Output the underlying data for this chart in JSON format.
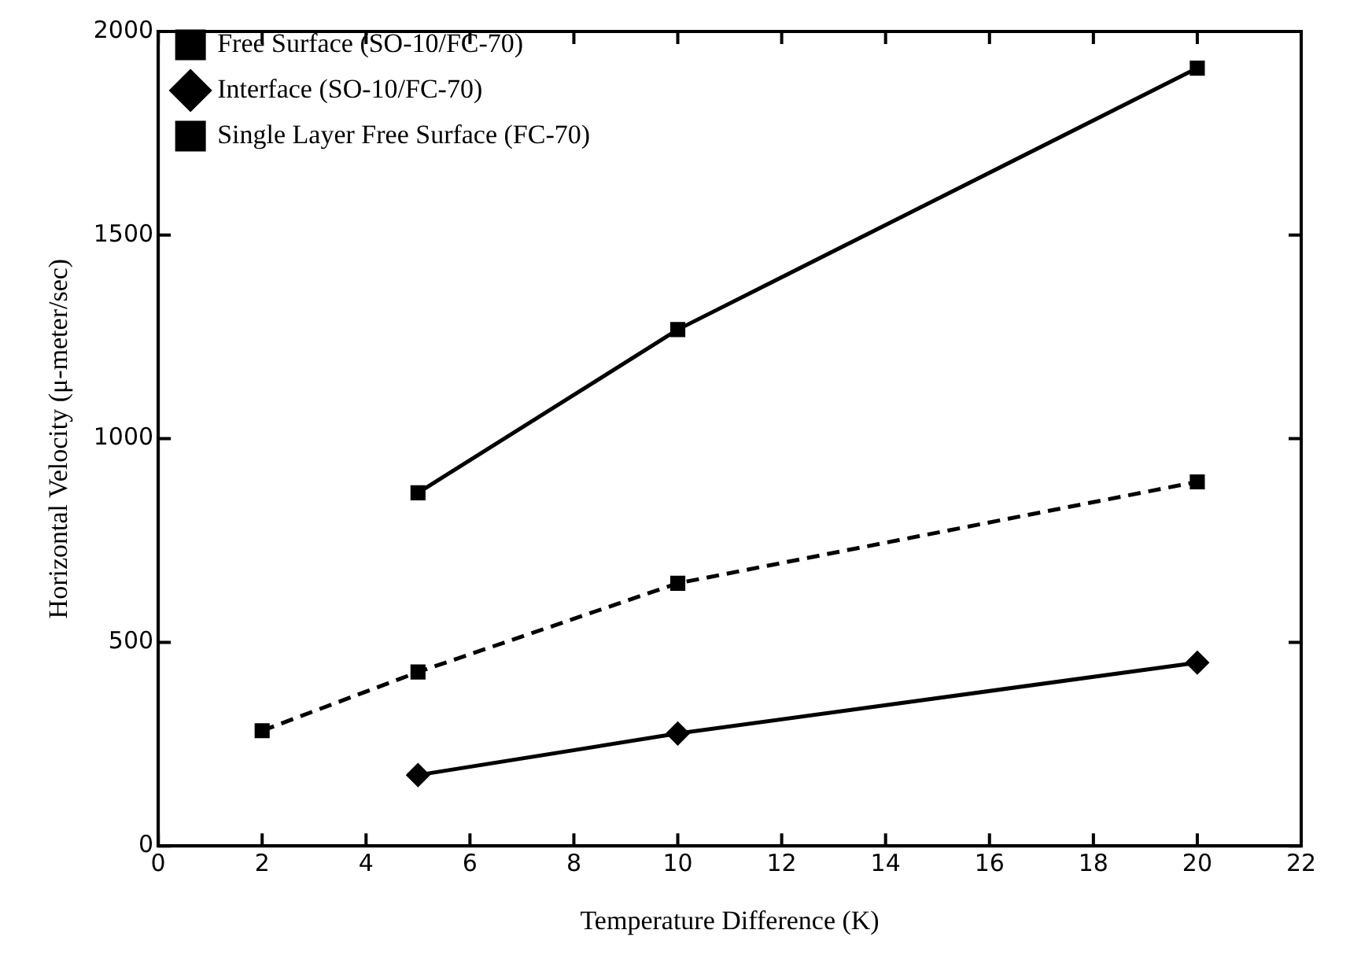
{
  "chart_data": {
    "type": "line",
    "xlabel": "Temperature Difference (K)",
    "ylabel": "Horizontal Velocity (μ-meter/sec)",
    "xlim": [
      0,
      22
    ],
    "xticks": [
      0,
      2,
      4,
      6,
      8,
      10,
      12,
      14,
      16,
      18,
      20,
      22
    ],
    "ylim": [
      0,
      2000
    ],
    "yticks": [
      0,
      500,
      1000,
      1500,
      2000
    ],
    "grid": false,
    "legend": "top left",
    "series": [
      {
        "name": "Free Surface (SO-10/FC-70)",
        "color": "#000000",
        "x": [
          5,
          10,
          20
        ],
        "values": [
          867,
          1268,
          1910
        ],
        "marker": "square",
        "line_style": "solid"
      },
      {
        "name": "Interface (SO-10/FC-70)",
        "color": "#000000",
        "x": [
          5,
          10,
          20
        ],
        "values": [
          174,
          276,
          450
        ],
        "marker": "diamond",
        "line_style": "solid"
      },
      {
        "name": "Single Layer Free Surface (FC-70)",
        "color": "#000000",
        "x": [
          2,
          5,
          10,
          20
        ],
        "values": [
          283,
          427,
          645,
          894
        ],
        "marker": "square",
        "line_style": "dashed"
      }
    ]
  }
}
